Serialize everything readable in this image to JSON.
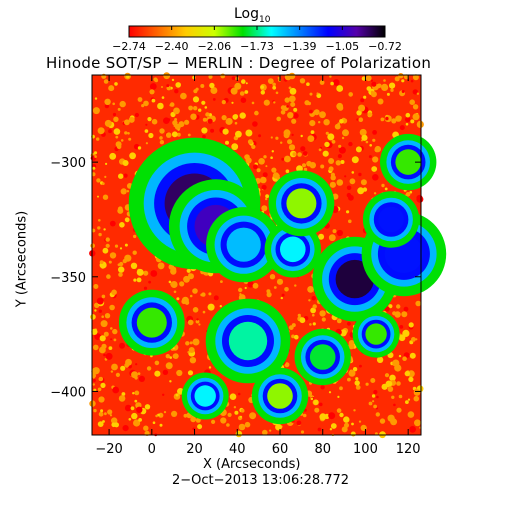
{
  "colorbar": {
    "label_base": "Log",
    "label_sub": "10",
    "ticks": [
      "−2.74",
      "−2.40",
      "−2.06",
      "−1.73",
      "−1.39",
      "−1.05",
      "−0.72"
    ],
    "colors": [
      "#ff0000",
      "#ff6600",
      "#ffcc00",
      "#ccff00",
      "#00e000",
      "#00ffff",
      "#0080ff",
      "#0000ff",
      "#5500aa",
      "#000000"
    ]
  },
  "title": "Hinode SOT/SP − MERLIN : Degree of Polarization",
  "footer": "2−Oct−2013 13:06:28.772",
  "chart_data": {
    "type": "heatmap",
    "title": "Hinode SOT/SP − MERLIN : Degree of Polarization",
    "xlabel": "X (Arcseconds)",
    "ylabel": "Y (Arcseconds)",
    "xlim": [
      -28,
      126
    ],
    "ylim": [
      -419,
      -262
    ],
    "x_ticks": [
      -20,
      0,
      20,
      40,
      60,
      80,
      100,
      120
    ],
    "y_ticks": [
      -300,
      -350,
      -400
    ],
    "x_tick_labels": [
      "−20",
      "0",
      "20",
      "40",
      "60",
      "80",
      "100",
      "120"
    ],
    "y_tick_labels": [
      "−300",
      "−350",
      "−400"
    ],
    "color_range": [
      -2.74,
      -0.72
    ],
    "colorbar_label": "Log10",
    "features": [
      {
        "x": 20,
        "y": -318,
        "r": 14,
        "value": -0.85
      },
      {
        "x": 30,
        "y": -328,
        "r": 10,
        "value": -1.0
      },
      {
        "x": 43,
        "y": -336,
        "r": 8,
        "value": -1.5
      },
      {
        "x": 95,
        "y": -351,
        "r": 9,
        "value": -0.8
      },
      {
        "x": 118,
        "y": -340,
        "r": 9,
        "value": -1.2
      },
      {
        "x": 112,
        "y": -325,
        "r": 6,
        "value": -1.2
      },
      {
        "x": 66,
        "y": -338,
        "r": 6,
        "value": -1.6
      },
      {
        "x": 0,
        "y": -370,
        "r": 7,
        "value": -1.9
      },
      {
        "x": 45,
        "y": -378,
        "r": 9,
        "value": -1.7
      },
      {
        "x": 80,
        "y": -385,
        "r": 6,
        "value": -1.8
      },
      {
        "x": 25,
        "y": -402,
        "r": 5,
        "value": -1.6
      },
      {
        "x": 60,
        "y": -402,
        "r": 6,
        "value": -2.0
      },
      {
        "x": 105,
        "y": -375,
        "r": 5,
        "value": -1.9
      },
      {
        "x": 120,
        "y": -300,
        "r": 6,
        "value": -1.9
      },
      {
        "x": 70,
        "y": -318,
        "r": 7,
        "value": -2.0
      }
    ]
  }
}
